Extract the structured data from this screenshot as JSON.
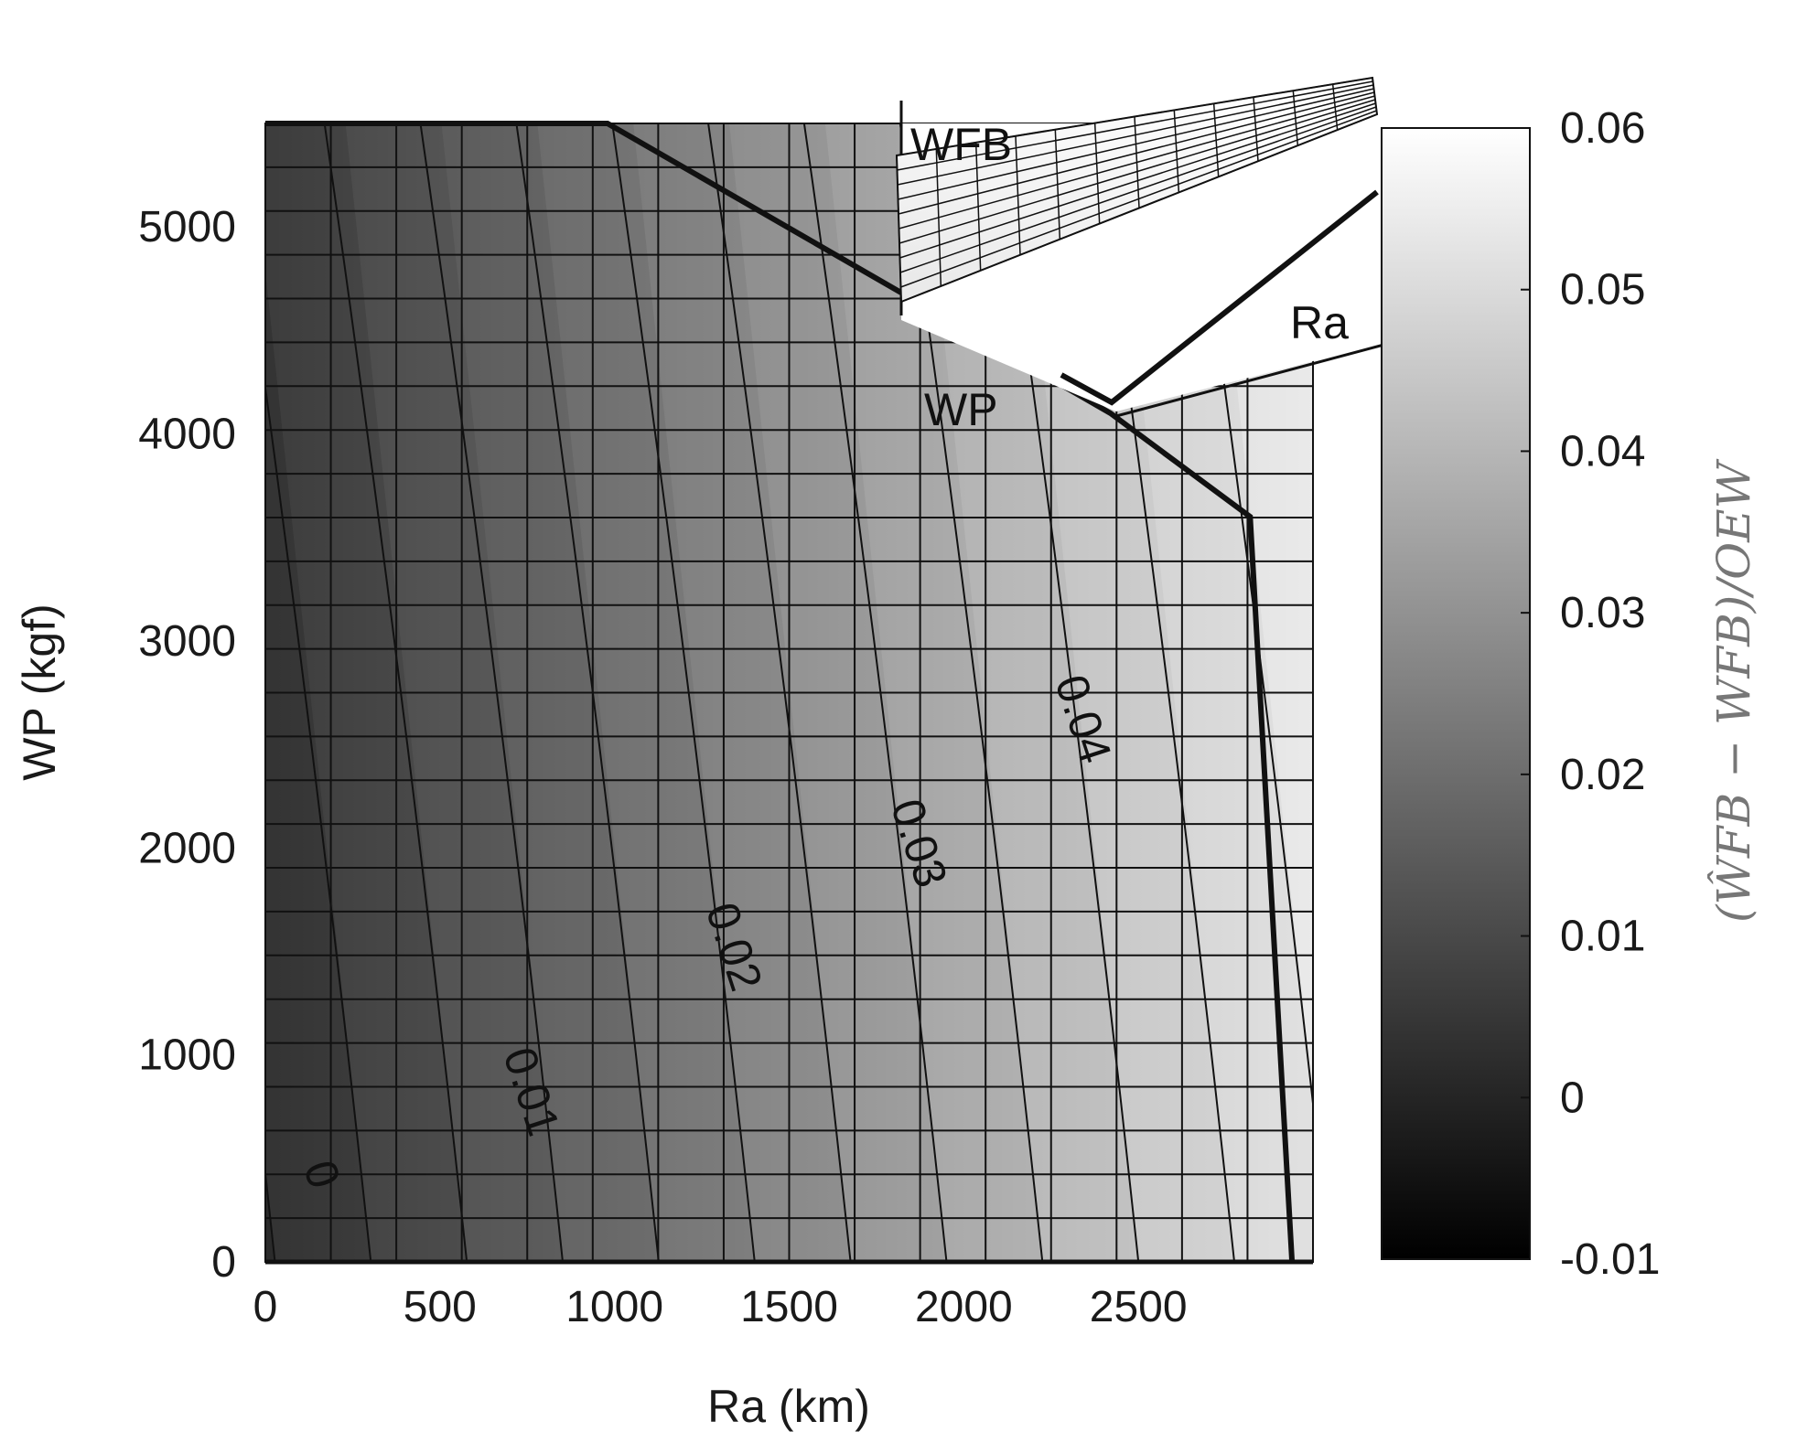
{
  "chart_data": {
    "type": "heatmap",
    "xlabel": "Ra (km)",
    "ylabel": "WP (kgf)",
    "xlim": [
      0,
      3000
    ],
    "ylim": [
      0,
      5500
    ],
    "x_ticks": [
      0,
      500,
      1000,
      1500,
      2000,
      2500
    ],
    "y_ticks": [
      0,
      1000,
      2000,
      3000,
      4000,
      5000
    ],
    "x_tick_labels": [
      "0",
      "500",
      "1000",
      "1500",
      "2000",
      "2500"
    ],
    "y_tick_labels": [
      "0",
      "1000",
      "2000",
      "3000",
      "4000",
      "5000"
    ],
    "grid": true,
    "colormap": "gray",
    "colorbar": {
      "title": "(ŴFB − WFB)/OEW",
      "clim": [
        -0.01,
        0.06
      ],
      "ticks": [
        -0.01,
        0,
        0.01,
        0.02,
        0.03,
        0.04,
        0.05,
        0.06
      ],
      "tick_labels": [
        "-0.01",
        "0",
        "0.01",
        "0.02",
        "0.03",
        "0.04",
        "0.05",
        "0.06"
      ]
    },
    "contour_labels": [
      {
        "text": "0",
        "value": 0.0,
        "ra": 120,
        "wp": 400
      },
      {
        "text": "0.01",
        "value": 0.01,
        "ra": 720,
        "wp": 800
      },
      {
        "text": "0.02",
        "value": 0.02,
        "ra": 1300,
        "wp": 1500
      },
      {
        "text": "0.03",
        "value": 0.03,
        "ra": 1830,
        "wp": 2000
      },
      {
        "text": "0.04",
        "value": 0.04,
        "ra": 2300,
        "wp": 2600
      }
    ],
    "payload_range_envelope": [
      {
        "ra": 0,
        "wp": 5500
      },
      {
        "ra": 980,
        "wp": 5500
      },
      {
        "ra": 2420,
        "wp": 4100
      },
      {
        "ra": 2820,
        "wp": 3600
      },
      {
        "ra": 2940,
        "wp": 0
      }
    ],
    "inset": {
      "labels": [
        "WFB",
        "Ra",
        "WP"
      ]
    }
  }
}
